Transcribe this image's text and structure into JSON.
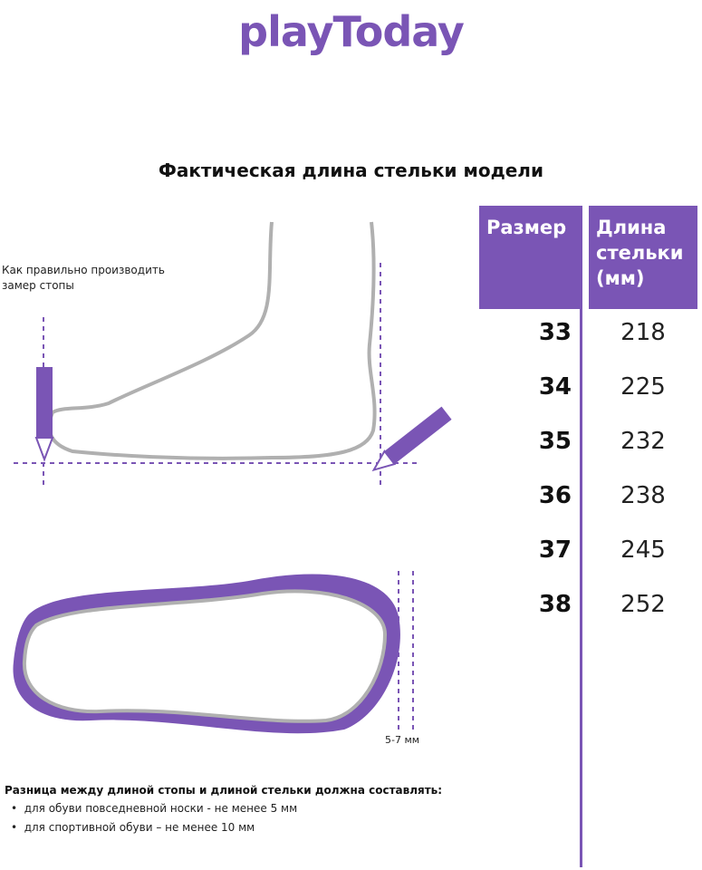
{
  "logo": "playToday",
  "title": "Фактическая длина стельки модели",
  "table": {
    "headers": [
      "Размер",
      "Длина стельки (мм)"
    ],
    "rows": [
      {
        "size": "33",
        "length": "218"
      },
      {
        "size": "34",
        "length": "225"
      },
      {
        "size": "35",
        "length": "232"
      },
      {
        "size": "36",
        "length": "238"
      },
      {
        "size": "37",
        "length": "245"
      },
      {
        "size": "38",
        "length": "252"
      }
    ]
  },
  "measure_note": "Как правильно производить замер стопы",
  "gap_label": "5-7 мм",
  "difference": {
    "heading": "Разница между длиной стопы и длиной стельки должна составлять:",
    "items": [
      "для обуви повседневной носки -  не менее 5 мм",
      "для спортивной обуви – не менее 10 мм"
    ]
  },
  "colors": {
    "accent": "#7a55b5",
    "outline": "#b0b0b0"
  }
}
